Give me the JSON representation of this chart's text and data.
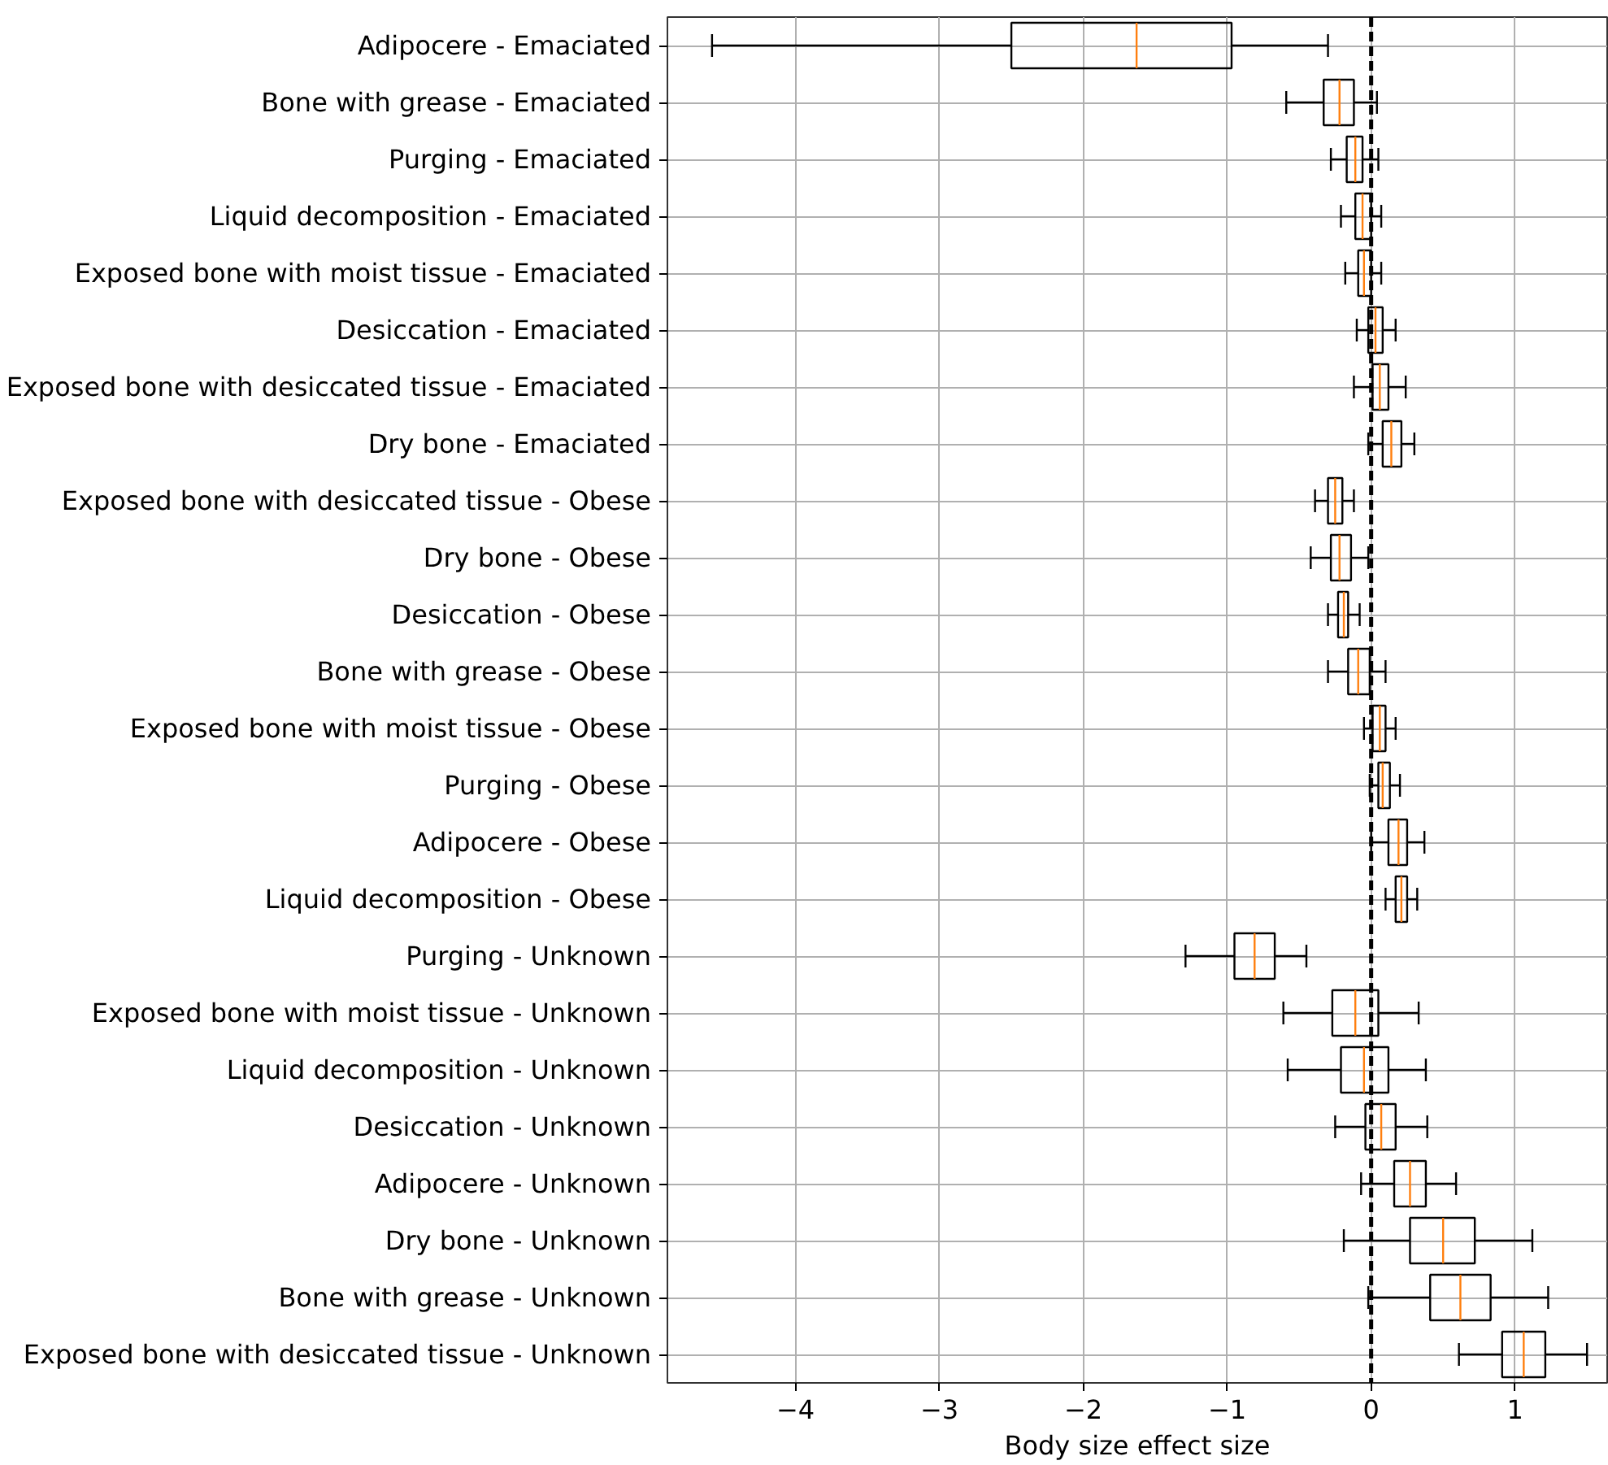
{
  "chart_data": {
    "type": "box",
    "orientation": "horizontal",
    "xlabel": "Body size effect size",
    "categories": [
      "Adipocere - Emaciated",
      "Bone with grease - Emaciated",
      "Purging - Emaciated",
      "Liquid decomposition - Emaciated",
      "Exposed bone with moist tissue - Emaciated",
      "Desiccation - Emaciated",
      "Exposed bone with desiccated tissue - Emaciated",
      "Dry bone - Emaciated",
      "Exposed bone with desiccated tissue - Obese",
      "Dry bone - Obese",
      "Desiccation - Obese",
      "Bone with grease - Obese",
      "Exposed bone with moist tissue - Obese",
      "Purging - Obese",
      "Adipocere - Obese",
      "Liquid decomposition - Obese",
      "Purging - Unknown",
      "Exposed bone with moist tissue - Unknown",
      "Liquid decomposition - Unknown",
      "Desiccation - Unknown",
      "Adipocere - Unknown",
      "Dry bone - Unknown",
      "Bone with grease - Unknown",
      "Exposed bone with desiccated tissue - Unknown"
    ],
    "series": [
      {
        "color": "#000000",
        "boxes": [
          {
            "low": -4.58,
            "q1": -2.5,
            "median": -1.63,
            "q3": -0.97,
            "high": -0.3
          },
          {
            "low": -0.59,
            "q1": -0.33,
            "median": -0.22,
            "q3": -0.12,
            "high": 0.04
          },
          {
            "low": -0.28,
            "q1": -0.17,
            "median": -0.11,
            "q3": -0.06,
            "high": 0.05
          },
          {
            "low": -0.21,
            "q1": -0.11,
            "median": -0.06,
            "q3": 0.0,
            "high": 0.07
          },
          {
            "low": -0.18,
            "q1": -0.09,
            "median": -0.05,
            "q3": 0.0,
            "high": 0.07
          },
          {
            "low": -0.1,
            "q1": -0.02,
            "median": 0.03,
            "q3": 0.08,
            "high": 0.17
          },
          {
            "low": -0.12,
            "q1": 0.01,
            "median": 0.06,
            "q3": 0.12,
            "high": 0.24
          },
          {
            "low": -0.02,
            "q1": 0.08,
            "median": 0.14,
            "q3": 0.21,
            "high": 0.3
          },
          {
            "low": -0.39,
            "q1": -0.3,
            "median": -0.25,
            "q3": -0.2,
            "high": -0.12
          },
          {
            "low": -0.42,
            "q1": -0.28,
            "median": -0.22,
            "q3": -0.14,
            "high": -0.02
          },
          {
            "low": -0.3,
            "q1": -0.23,
            "median": -0.19,
            "q3": -0.16,
            "high": -0.08
          },
          {
            "low": -0.3,
            "q1": -0.16,
            "median": -0.09,
            "q3": -0.01,
            "high": 0.1
          },
          {
            "low": -0.05,
            "q1": 0.01,
            "median": 0.06,
            "q3": 0.1,
            "high": 0.17
          },
          {
            "low": -0.01,
            "q1": 0.05,
            "median": 0.08,
            "q3": 0.13,
            "high": 0.2
          },
          {
            "low": 0.0,
            "q1": 0.12,
            "median": 0.19,
            "q3": 0.25,
            "high": 0.37
          },
          {
            "low": 0.1,
            "q1": 0.17,
            "median": 0.21,
            "q3": 0.25,
            "high": 0.32
          },
          {
            "low": -1.29,
            "q1": -0.95,
            "median": -0.81,
            "q3": -0.67,
            "high": -0.45
          },
          {
            "low": -0.61,
            "q1": -0.27,
            "median": -0.11,
            "q3": 0.05,
            "high": 0.33
          },
          {
            "low": -0.58,
            "q1": -0.21,
            "median": -0.05,
            "q3": 0.12,
            "high": 0.38
          },
          {
            "low": -0.25,
            "q1": -0.04,
            "median": 0.07,
            "q3": 0.17,
            "high": 0.39
          },
          {
            "low": -0.07,
            "q1": 0.16,
            "median": 0.27,
            "q3": 0.38,
            "high": 0.59
          },
          {
            "low": -0.19,
            "q1": 0.27,
            "median": 0.5,
            "q3": 0.72,
            "high": 1.12
          },
          {
            "low": -0.02,
            "q1": 0.41,
            "median": 0.62,
            "q3": 0.83,
            "high": 1.23
          },
          {
            "low": 0.61,
            "q1": 0.91,
            "median": 1.06,
            "q3": 1.21,
            "high": 1.5
          }
        ]
      }
    ],
    "xlim": [
      -4.89,
      1.64
    ],
    "xticks": [
      {
        "value": -4,
        "label": "−4"
      },
      {
        "value": -3,
        "label": "−3"
      },
      {
        "value": -2,
        "label": "−2"
      },
      {
        "value": -1,
        "label": "−1"
      },
      0,
      1
    ],
    "ref_lines": [
      {
        "axis": "x",
        "value": 0,
        "color": "#000000",
        "line_style": "dashed"
      }
    ],
    "grid": true
  }
}
